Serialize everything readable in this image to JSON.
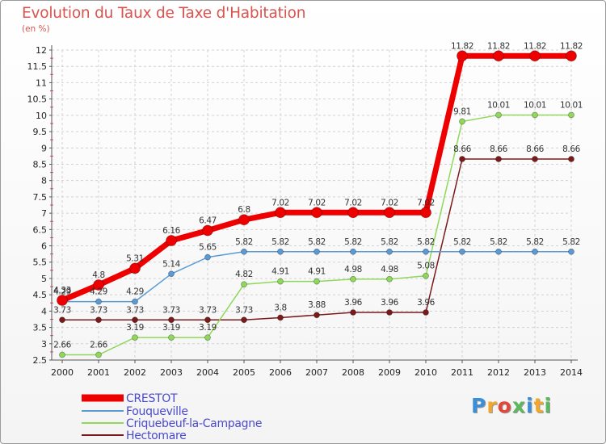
{
  "chart_data": {
    "type": "line",
    "title": "Evolution du Taux de Taxe d'Habitation",
    "subtitle": "(en %)",
    "x": [
      2000,
      2001,
      2002,
      2003,
      2004,
      2005,
      2006,
      2007,
      2008,
      2009,
      2010,
      2011,
      2012,
      2013,
      2014
    ],
    "ylim": [
      2.5,
      12
    ],
    "yticks": [
      "2.5",
      "3",
      "3.5",
      "4",
      "4.5",
      "5",
      "5.5",
      "6",
      "6.5",
      "7",
      "7.5",
      "8",
      "8.5",
      "9",
      "9.5",
      "10",
      "10.5",
      "11",
      "11.5",
      "12"
    ],
    "grid": true,
    "legend_position": "bottom-left",
    "series": [
      {
        "name": "CRESTOT",
        "color": "#ee0000",
        "values": [
          4.33,
          4.8,
          5.31,
          6.16,
          6.47,
          6.8,
          7.02,
          7.02,
          7.02,
          7.02,
          7.02,
          11.82,
          11.82,
          11.82,
          11.82
        ],
        "labels": [
          "4.33",
          "4.8",
          "5.31",
          "6.16",
          "6.47",
          "6.8",
          "7.02",
          "7.02",
          "7.02",
          "7.02",
          "7.02",
          "11.82",
          "11.82",
          "11.82",
          "11.82"
        ]
      },
      {
        "name": "Fouqueville",
        "color": "#5b9bd5",
        "values": [
          4.29,
          4.29,
          4.29,
          5.14,
          5.65,
          5.82,
          5.82,
          5.82,
          5.82,
          5.82,
          5.82,
          5.82,
          5.82,
          5.82,
          5.82
        ],
        "labels": [
          "4.29",
          "4.29",
          "4.29",
          "5.14",
          "5.65",
          "5.82",
          "5.82",
          "5.82",
          "5.82",
          "5.82",
          "5.82",
          "5.82",
          "5.82",
          "5.82",
          "5.82"
        ]
      },
      {
        "name": "Criquebeuf-la-Campagne",
        "color": "#8fd85a",
        "values": [
          2.66,
          2.66,
          3.19,
          3.19,
          3.19,
          4.82,
          4.91,
          4.91,
          4.98,
          4.98,
          5.08,
          9.81,
          10.01,
          10.01,
          10.01
        ],
        "labels": [
          "2.66",
          "2.66",
          "3.19",
          "3.19",
          "3.19",
          "4.82",
          "4.91",
          "4.91",
          "4.98",
          "4.98",
          "5.08",
          "9.81",
          "10.01",
          "10.01",
          "10.01"
        ]
      },
      {
        "name": "Hectomare",
        "color": "#7a1a1a",
        "values": [
          3.73,
          3.73,
          3.73,
          3.73,
          3.73,
          3.73,
          3.8,
          3.88,
          3.96,
          3.96,
          3.96,
          8.66,
          8.66,
          8.66,
          8.66
        ],
        "labels": [
          "3.73",
          "3.73",
          "3.73",
          "3.73",
          "3.73",
          "3.73",
          "3.8",
          "3.88",
          "3.96",
          "3.96",
          "3.96",
          "8.66",
          "8.66",
          "8.66",
          "8.66"
        ]
      }
    ]
  },
  "logo": {
    "letters": [
      "P",
      "r",
      "o",
      "x",
      "i",
      "t",
      "i"
    ],
    "colors": [
      "#3b8fd9",
      "#f2a72a",
      "#e2473a",
      "#5cb85c",
      "#3b8fd9",
      "#f2a72a",
      "#5cb85c"
    ]
  }
}
